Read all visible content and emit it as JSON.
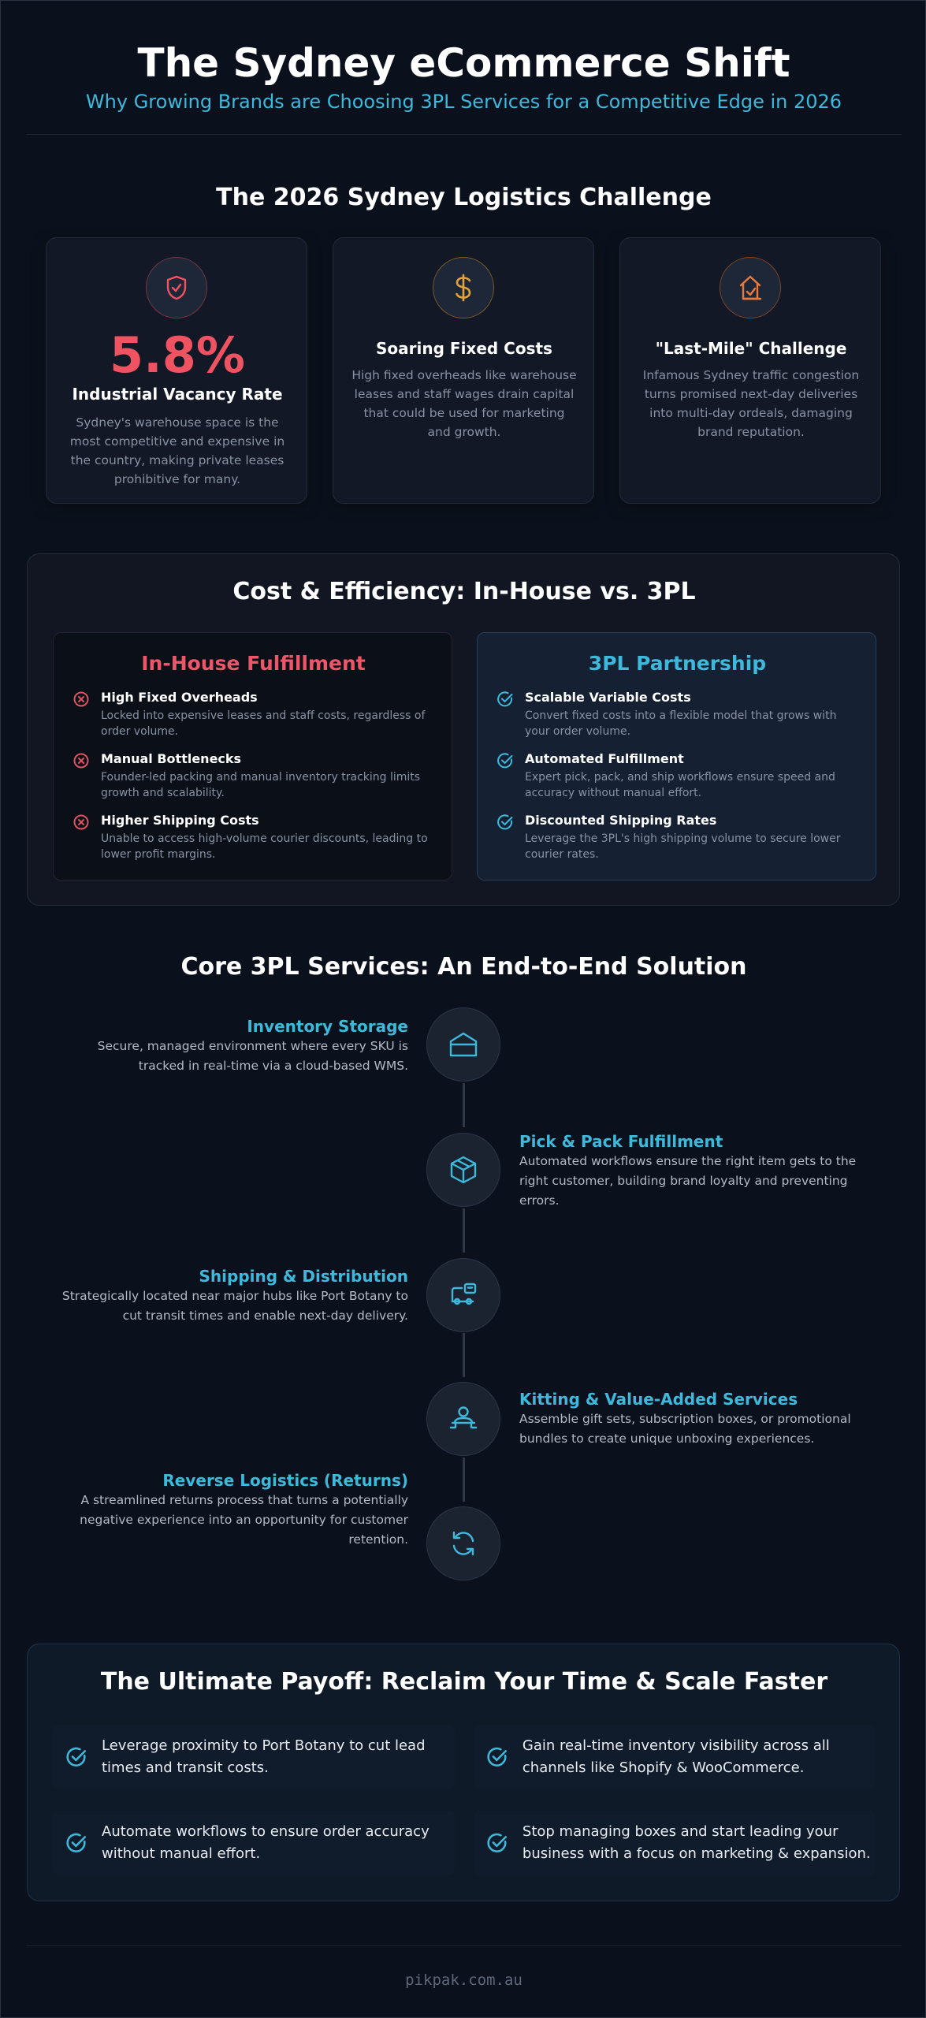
{
  "header": {
    "title": "The Sydney eCommerce Shift",
    "subtitle": "Why Growing Brands are Choosing 3PL Services for a Competitive Edge in 2026"
  },
  "challenge": {
    "title": "The 2026 Sydney Logistics Challenge",
    "cards": [
      {
        "icon": "shield-icon",
        "stat": "5.8%",
        "heading": "Industrial Vacancy Rate",
        "text": "Sydney's warehouse space is the most competitive and expensive in the country, making private leases prohibitive for many."
      },
      {
        "icon": "dollar-icon",
        "heading": "Soaring Fixed Costs",
        "text": "High fixed overheads like warehouse leases and staff wages drain capital that could be used for marketing and growth."
      },
      {
        "icon": "delivery-icon",
        "heading": "\"Last-Mile\" Challenge",
        "text": "Infamous Sydney traffic congestion turns promised next-day deliveries into multi-day ordeals, damaging brand reputation."
      }
    ]
  },
  "comparison": {
    "title": "Cost & Efficiency: In-House vs. 3PL",
    "inhouse": {
      "title": "In-House Fulfillment",
      "items": [
        {
          "title": "High Fixed Overheads",
          "text": "Locked into expensive leases and staff costs, regardless of order volume."
        },
        {
          "title": "Manual Bottlenecks",
          "text": "Founder-led packing and manual inventory tracking limits growth and scalability."
        },
        {
          "title": "Higher Shipping Costs",
          "text": "Unable to access high-volume courier discounts, leading to lower profit margins."
        }
      ]
    },
    "tpl": {
      "title": "3PL Partnership",
      "items": [
        {
          "title": "Scalable Variable Costs",
          "text": "Convert fixed costs into a flexible model that grows with your order volume."
        },
        {
          "title": "Automated Fulfillment",
          "text": "Expert pick, pack, and ship workflows ensure speed and accuracy without manual effort."
        },
        {
          "title": "Discounted Shipping Rates",
          "text": "Leverage the 3PL's high shipping volume to secure lower courier rates."
        }
      ]
    }
  },
  "services": {
    "title": "Core 3PL Services: An End-to-End Solution",
    "steps": [
      {
        "icon": "warehouse-icon",
        "title": "Inventory Storage",
        "text": "Secure, managed environment where every SKU is tracked in real-time via a cloud-based WMS."
      },
      {
        "icon": "package-icon",
        "title": "Pick & Pack Fulfillment",
        "text": "Automated workflows ensure the right item gets to the right customer, building brand loyalty and preventing errors."
      },
      {
        "icon": "truck-icon",
        "title": "Shipping & Distribution",
        "text": "Strategically located near major hubs like Port Botany to cut transit times and enable next-day delivery."
      },
      {
        "icon": "person-box-icon",
        "title": "Kitting & Value-Added Services",
        "text": "Assemble gift sets, subscription boxes, or promotional bundles to create unique unboxing experiences."
      },
      {
        "icon": "refresh-icon",
        "title": "Reverse Logistics (Returns)",
        "text": "A streamlined returns process that turns a potentially negative experience into an opportunity for customer retention."
      }
    ]
  },
  "payoff": {
    "title": "The Ultimate Payoff: Reclaim Your Time & Scale Faster",
    "items": [
      "Leverage proximity to Port Botany to cut lead times and transit costs.",
      "Gain real-time inventory visibility across all channels like Shopify & WooCommerce.",
      "Automate workflows to ensure order accuracy without manual effort.",
      "Stop managing boxes and start leading your business with a focus on marketing & expansion."
    ]
  },
  "footer": {
    "domain": "pikpak.com.au"
  },
  "colors": {
    "accent": "#3db9dc",
    "danger": "#ef5261",
    "warning": "#e2a43a",
    "orange": "#e87a3c",
    "background": "#0b111c"
  }
}
